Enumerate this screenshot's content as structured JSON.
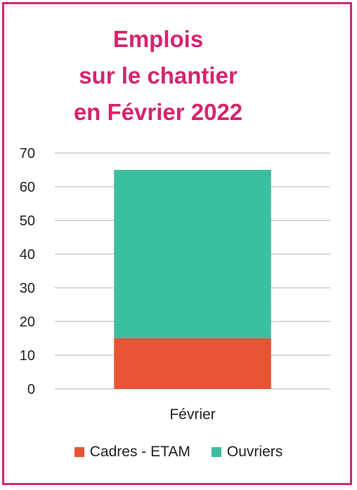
{
  "chart_data": {
    "type": "bar",
    "stacked": true,
    "title_lines": [
      "Emplois",
      "sur le chantier",
      "en Février 2022"
    ],
    "categories": [
      "Février"
    ],
    "series": [
      {
        "name": "Cadres - ETAM",
        "values": [
          15
        ],
        "color": "#e85434"
      },
      {
        "name": "Ouvriers",
        "values": [
          50
        ],
        "color": "#3abfa0"
      }
    ],
    "ylim": [
      0,
      70
    ],
    "yticks": [
      "0",
      "10",
      "20",
      "30",
      "40",
      "50",
      "60",
      "70"
    ],
    "grid": true,
    "legend": "bottom"
  },
  "colors": {
    "accent": "#d6246e",
    "grid": "#d9d9d9"
  }
}
